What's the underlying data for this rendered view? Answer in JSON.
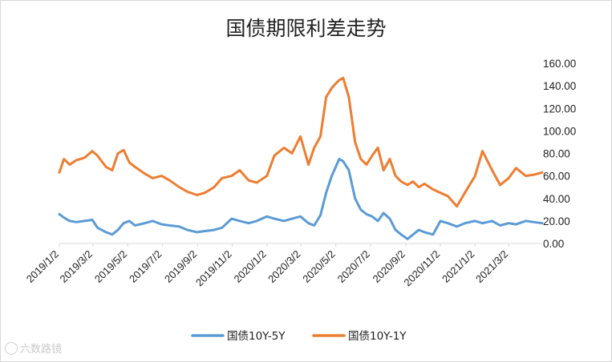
{
  "chart_data": {
    "type": "line",
    "title": "国债期限利差走势",
    "ylim": [
      0,
      160
    ],
    "yticks": [
      "0.00",
      "20.00",
      "40.00",
      "60.00",
      "80.00",
      "100.00",
      "120.00",
      "140.00",
      "160.00"
    ],
    "y_axis_position": "right",
    "grid": false,
    "legend_position": "bottom",
    "x_tick_labels": [
      "2019/1/2",
      "2019/3/2",
      "2019/5/2",
      "2019/7/2",
      "2019/9/2",
      "2019/11/2",
      "2020/1/2",
      "2020/3/2",
      "2020/5/2",
      "2020/7/2",
      "2020/9/2",
      "2020/11/2",
      "2021/1/2",
      "2021/3/2"
    ],
    "x_range": [
      "2019/1/2",
      "2021/4/30"
    ],
    "series": [
      {
        "name": "国债10Y-5Y",
        "color": "#5b9bd5",
        "points": [
          [
            "2019/1/2",
            26
          ],
          [
            "2019/1/10",
            23
          ],
          [
            "2019/1/20",
            20
          ],
          [
            "2019/2/1",
            19
          ],
          [
            "2019/2/15",
            20
          ],
          [
            "2019/3/1",
            21
          ],
          [
            "2019/3/10",
            14
          ],
          [
            "2019/3/25",
            10
          ],
          [
            "2019/4/5",
            8
          ],
          [
            "2019/4/15",
            12
          ],
          [
            "2019/4/25",
            18
          ],
          [
            "2019/5/5",
            20
          ],
          [
            "2019/5/15",
            16
          ],
          [
            "2019/6/1",
            18
          ],
          [
            "2019/6/15",
            20
          ],
          [
            "2019/7/1",
            17
          ],
          [
            "2019/7/15",
            16
          ],
          [
            "2019/8/1",
            15
          ],
          [
            "2019/8/15",
            12
          ],
          [
            "2019/9/1",
            10
          ],
          [
            "2019/9/15",
            11
          ],
          [
            "2019/10/1",
            12
          ],
          [
            "2019/10/15",
            14
          ],
          [
            "2019/11/1",
            22
          ],
          [
            "2019/11/15",
            20
          ],
          [
            "2019/12/1",
            18
          ],
          [
            "2019/12/15",
            20
          ],
          [
            "2020/1/2",
            24
          ],
          [
            "2020/1/15",
            22
          ],
          [
            "2020/2/1",
            20
          ],
          [
            "2020/2/15",
            22
          ],
          [
            "2020/3/1",
            24
          ],
          [
            "2020/3/15",
            18
          ],
          [
            "2020/3/25",
            16
          ],
          [
            "2020/4/5",
            25
          ],
          [
            "2020/4/15",
            45
          ],
          [
            "2020/4/25",
            60
          ],
          [
            "2020/5/2",
            68
          ],
          [
            "2020/5/8",
            75
          ],
          [
            "2020/5/15",
            73
          ],
          [
            "2020/5/25",
            65
          ],
          [
            "2020/6/5",
            40
          ],
          [
            "2020/6/15",
            30
          ],
          [
            "2020/6/25",
            26
          ],
          [
            "2020/7/5",
            24
          ],
          [
            "2020/7/15",
            20
          ],
          [
            "2020/7/25",
            27
          ],
          [
            "2020/8/5",
            22
          ],
          [
            "2020/8/15",
            12
          ],
          [
            "2020/8/25",
            8
          ],
          [
            "2020/9/5",
            4
          ],
          [
            "2020/9/15",
            8
          ],
          [
            "2020/9/25",
            12
          ],
          [
            "2020/10/5",
            10
          ],
          [
            "2020/10/20",
            8
          ],
          [
            "2020/11/2",
            20
          ],
          [
            "2020/11/15",
            18
          ],
          [
            "2020/12/1",
            15
          ],
          [
            "2020/12/15",
            18
          ],
          [
            "2021/1/2",
            20
          ],
          [
            "2021/1/15",
            18
          ],
          [
            "2021/2/1",
            20
          ],
          [
            "2021/2/15",
            16
          ],
          [
            "2021/3/2",
            18
          ],
          [
            "2021/3/15",
            17
          ],
          [
            "2021/4/1",
            20
          ],
          [
            "2021/4/15",
            19
          ],
          [
            "2021/4/30",
            18
          ]
        ]
      },
      {
        "name": "国债10Y-1Y",
        "color": "#ed7d31",
        "points": [
          [
            "2019/1/2",
            63
          ],
          [
            "2019/1/10",
            75
          ],
          [
            "2019/1/20",
            70
          ],
          [
            "2019/2/1",
            74
          ],
          [
            "2019/2/15",
            76
          ],
          [
            "2019/3/1",
            82
          ],
          [
            "2019/3/10",
            78
          ],
          [
            "2019/3/25",
            68
          ],
          [
            "2019/4/5",
            65
          ],
          [
            "2019/4/15",
            80
          ],
          [
            "2019/4/25",
            83
          ],
          [
            "2019/5/5",
            72
          ],
          [
            "2019/5/15",
            68
          ],
          [
            "2019/6/1",
            62
          ],
          [
            "2019/6/15",
            58
          ],
          [
            "2019/7/1",
            60
          ],
          [
            "2019/7/15",
            56
          ],
          [
            "2019/8/1",
            50
          ],
          [
            "2019/8/15",
            46
          ],
          [
            "2019/9/1",
            43
          ],
          [
            "2019/9/15",
            45
          ],
          [
            "2019/10/1",
            50
          ],
          [
            "2019/10/15",
            58
          ],
          [
            "2019/11/1",
            60
          ],
          [
            "2019/11/15",
            65
          ],
          [
            "2019/12/1",
            56
          ],
          [
            "2019/12/15",
            54
          ],
          [
            "2020/1/2",
            60
          ],
          [
            "2020/1/15",
            78
          ],
          [
            "2020/2/1",
            85
          ],
          [
            "2020/2/15",
            80
          ],
          [
            "2020/3/1",
            95
          ],
          [
            "2020/3/15",
            70
          ],
          [
            "2020/3/25",
            85
          ],
          [
            "2020/4/5",
            95
          ],
          [
            "2020/4/15",
            130
          ],
          [
            "2020/4/25",
            138
          ],
          [
            "2020/5/2",
            142
          ],
          [
            "2020/5/8",
            145
          ],
          [
            "2020/5/15",
            147
          ],
          [
            "2020/5/25",
            130
          ],
          [
            "2020/6/5",
            90
          ],
          [
            "2020/6/15",
            75
          ],
          [
            "2020/6/25",
            70
          ],
          [
            "2020/7/5",
            78
          ],
          [
            "2020/7/15",
            85
          ],
          [
            "2020/7/25",
            65
          ],
          [
            "2020/8/5",
            75
          ],
          [
            "2020/8/15",
            60
          ],
          [
            "2020/8/25",
            55
          ],
          [
            "2020/9/5",
            52
          ],
          [
            "2020/9/15",
            55
          ],
          [
            "2020/9/25",
            50
          ],
          [
            "2020/10/5",
            53
          ],
          [
            "2020/10/20",
            48
          ],
          [
            "2020/11/2",
            45
          ],
          [
            "2020/11/15",
            42
          ],
          [
            "2020/12/1",
            33
          ],
          [
            "2020/12/15",
            45
          ],
          [
            "2021/1/2",
            60
          ],
          [
            "2021/1/15",
            82
          ],
          [
            "2021/2/1",
            65
          ],
          [
            "2021/2/15",
            52
          ],
          [
            "2021/3/2",
            58
          ],
          [
            "2021/3/15",
            67
          ],
          [
            "2021/4/1",
            60
          ],
          [
            "2021/4/15",
            61
          ],
          [
            "2021/4/30",
            63
          ]
        ]
      }
    ]
  },
  "watermark": "六数路镜"
}
